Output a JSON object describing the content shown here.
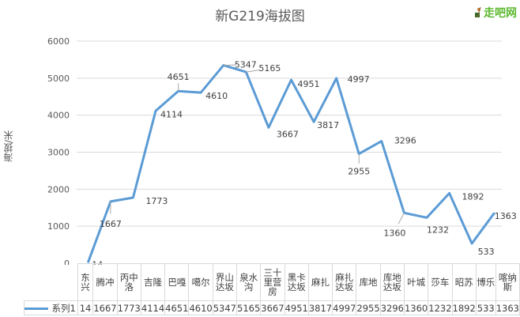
{
  "title": "新G219海拔图",
  "logo": {
    "text": "走吧网",
    "icon": "hiker-icon"
  },
  "y_axis_label": "海拔/米",
  "legend": {
    "series_name": "系列1",
    "color": "#5b9bd5"
  },
  "chart_data": {
    "type": "line",
    "title": "新G219海拔图",
    "xlabel": "",
    "ylabel": "海拔/米",
    "ylim": [
      0,
      6000
    ],
    "yticks": [
      0,
      1000,
      2000,
      3000,
      4000,
      5000,
      6000
    ],
    "grid": true,
    "legend_position": "data-table",
    "categories": [
      "东兴",
      "腾冲",
      "丙中洛",
      "吉隆",
      "巴嘎",
      "噶尔",
      "界山达坂",
      "泉水沟",
      "三十里营房",
      "黑卡达坂",
      "麻扎",
      "麻扎达坂",
      "库地",
      "库地达坂",
      "叶城",
      "莎车",
      "昭苏",
      "博乐",
      "喀纳斯"
    ],
    "series": [
      {
        "name": "系列1",
        "values": [
          14,
          1667,
          1773,
          4114,
          4651,
          4610,
          5347,
          5165,
          3667,
          4951,
          3817,
          4997,
          2955,
          3296,
          1360,
          1232,
          1892,
          533,
          1363
        ]
      }
    ]
  },
  "table": {
    "headers_display": [
      "东兴",
      "腾冲",
      "丙中\n洛",
      "吉隆",
      "巴嘎",
      "噶尔",
      "界山\n达坂",
      "泉水\n沟",
      "三十\n里营\n房",
      "黑卡\n达坂",
      "麻扎",
      "麻扎\n达坂",
      "库地",
      "库地\n达坂",
      "叶城",
      "莎车",
      "昭苏",
      "博乐",
      "喀纳\n斯"
    ],
    "row_label": "系列1",
    "values": [
      "14",
      "1667",
      "1773",
      "4114",
      "4651",
      "4610",
      "5347",
      "5165",
      "3667",
      "4951",
      "3817",
      "4997",
      "2955",
      "3296",
      "1360",
      "1232",
      "1892",
      "533",
      "1363"
    ]
  }
}
